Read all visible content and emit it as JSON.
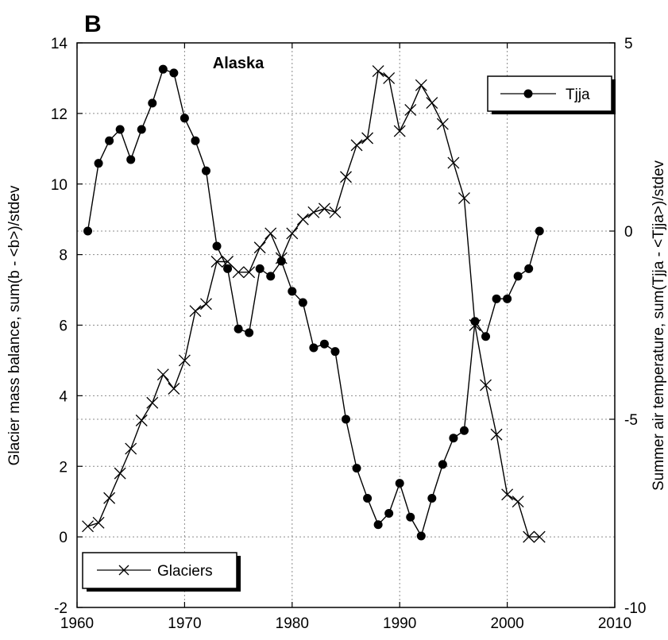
{
  "chart_data": {
    "type": "line",
    "panel_label": "B",
    "region_label": "Alaska",
    "xlabel": "",
    "ylabel": "Glacier mass balance, sum(b - <b>)/stdev",
    "y2label": "Summer air temperature, sum(Tjja - <Tjja>)/stdev",
    "xlim": [
      1960,
      2010
    ],
    "ylim": [
      -2,
      14
    ],
    "y2lim": [
      -10,
      5
    ],
    "xticks": [
      "1960",
      "1970",
      "1980",
      "1990",
      "2000",
      "2010"
    ],
    "yticks": [
      "-2",
      "0",
      "2",
      "4",
      "6",
      "8",
      "10",
      "12",
      "14"
    ],
    "y2ticks": [
      "-10",
      "-5",
      "0",
      "5"
    ],
    "grid": true,
    "series": [
      {
        "name": "Tjja",
        "axis": "right",
        "marker": "filled-circle",
        "x": [
          1961,
          1962,
          1963,
          1964,
          1965,
          1966,
          1967,
          1968,
          1969,
          1970,
          1971,
          1972,
          1973,
          1974,
          1975,
          1976,
          1977,
          1978,
          1979,
          1980,
          1981,
          1982,
          1983,
          1984,
          1985,
          1986,
          1987,
          1988,
          1989,
          1990,
          1991,
          1992,
          1993,
          1994,
          1995,
          1996,
          1997,
          1998,
          1999,
          2000,
          2001,
          2002,
          2003
        ],
        "y": [
          0.0,
          1.8,
          2.4,
          2.7,
          1.9,
          2.7,
          3.4,
          4.3,
          4.2,
          3.0,
          2.4,
          1.6,
          -0.4,
          -1.0,
          -2.6,
          -2.7,
          -1.0,
          -1.2,
          -0.8,
          -1.6,
          -1.9,
          -3.1,
          -3.0,
          -3.2,
          -5.0,
          -6.3,
          -7.1,
          -7.8,
          -7.5,
          -6.7,
          -7.6,
          -8.1,
          -7.1,
          -6.2,
          -5.5,
          -5.3,
          -2.4,
          -2.8,
          -1.8,
          -1.8,
          -1.2,
          -1.0,
          0.0
        ]
      },
      {
        "name": "Glaciers",
        "axis": "left",
        "marker": "x",
        "x": [
          1961,
          1962,
          1963,
          1964,
          1965,
          1966,
          1967,
          1968,
          1969,
          1970,
          1971,
          1972,
          1973,
          1974,
          1975,
          1976,
          1977,
          1978,
          1979,
          1980,
          1981,
          1982,
          1983,
          1984,
          1985,
          1986,
          1987,
          1988,
          1989,
          1990,
          1991,
          1992,
          1993,
          1994,
          1995,
          1996,
          1997,
          1998,
          1999,
          2000,
          2001,
          2002,
          2003
        ],
        "y": [
          0.3,
          0.4,
          1.1,
          1.8,
          2.5,
          3.3,
          3.8,
          4.6,
          4.2,
          5.0,
          6.4,
          6.6,
          7.8,
          7.8,
          7.5,
          7.5,
          8.2,
          8.6,
          7.9,
          8.6,
          9.0,
          9.2,
          9.3,
          9.2,
          10.2,
          11.1,
          11.3,
          13.2,
          13.0,
          11.5,
          12.1,
          12.8,
          12.3,
          11.7,
          10.6,
          9.6,
          6.0,
          4.3,
          2.9,
          1.2,
          1.0,
          0.0,
          0.0
        ]
      }
    ],
    "legends": [
      {
        "series": "Tjja",
        "placement": "top-right"
      },
      {
        "series": "Glaciers",
        "placement": "bottom-left"
      }
    ]
  },
  "colors": {
    "line": "#000000",
    "grid": "#8c8c8c",
    "background": "#ffffff",
    "legend_shadow": "#000000"
  }
}
